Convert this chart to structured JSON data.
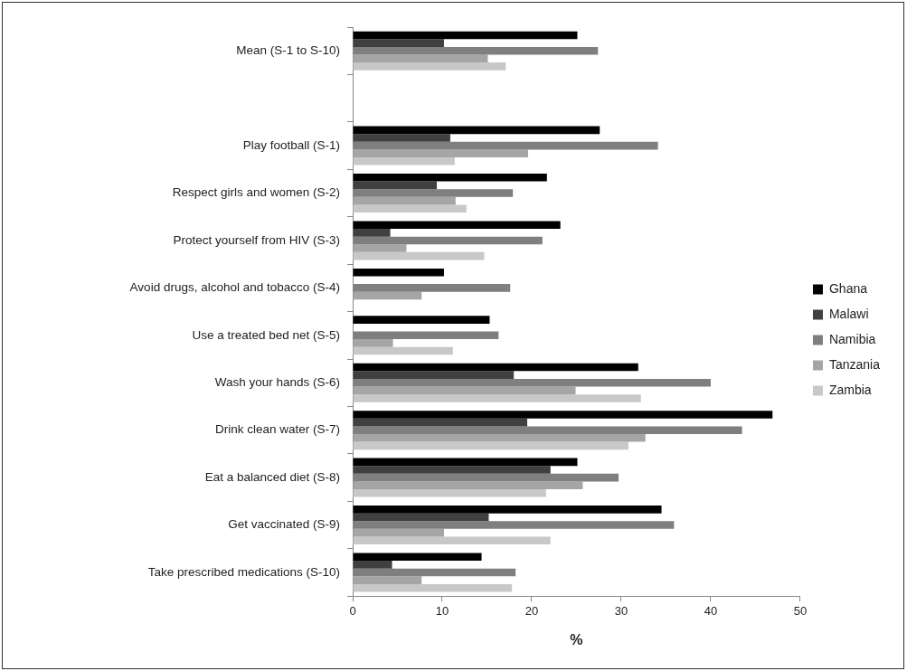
{
  "chart_data": {
    "type": "bar",
    "orientation": "horizontal",
    "xlabel": "%",
    "categories": [
      "Mean (S-1 to S-10)",
      null,
      "Play football (S-1)",
      "Respect girls and women (S-2)",
      "Protect yourself from HIV (S-3)",
      "Avoid drugs, alcohol and tobacco (S-4)",
      "Use a treated bed net (S-5)",
      "Wash your hands (S-6)",
      "Drink clean water (S-7)",
      "Eat a balanced diet (S-8)",
      "Get vaccinated (S-9)",
      "Take prescribed medications (S-10)"
    ],
    "series": [
      {
        "name": "Ghana",
        "color": "#000000",
        "values": [
          25.1,
          null,
          27.6,
          21.7,
          23.2,
          10.2,
          15.3,
          31.9,
          46.9,
          25.1,
          34.5,
          14.4
        ]
      },
      {
        "name": "Malawi",
        "color": "#404040",
        "values": [
          10.2,
          null,
          10.9,
          9.4,
          4.2,
          0,
          0,
          18.0,
          19.5,
          22.1,
          15.2,
          4.4
        ]
      },
      {
        "name": "Namibia",
        "color": "#7f7f7f",
        "values": [
          27.4,
          null,
          34.1,
          17.9,
          21.2,
          17.6,
          16.3,
          40.0,
          43.5,
          29.7,
          35.9,
          18.2
        ]
      },
      {
        "name": "Tanzania",
        "color": "#a5a5a5",
        "values": [
          15.1,
          null,
          19.6,
          11.5,
          6.0,
          7.7,
          4.5,
          24.9,
          32.7,
          25.7,
          10.2,
          7.7
        ]
      },
      {
        "name": "Zambia",
        "color": "#c8c8c8",
        "values": [
          17.1,
          null,
          11.4,
          12.7,
          14.7,
          0,
          11.2,
          32.2,
          30.8,
          21.6,
          22.1,
          17.8
        ]
      }
    ],
    "xlim": [
      0,
      50
    ],
    "xticks": [
      0,
      10,
      20,
      30,
      40,
      50
    ],
    "grid": false,
    "legend": "right"
  }
}
